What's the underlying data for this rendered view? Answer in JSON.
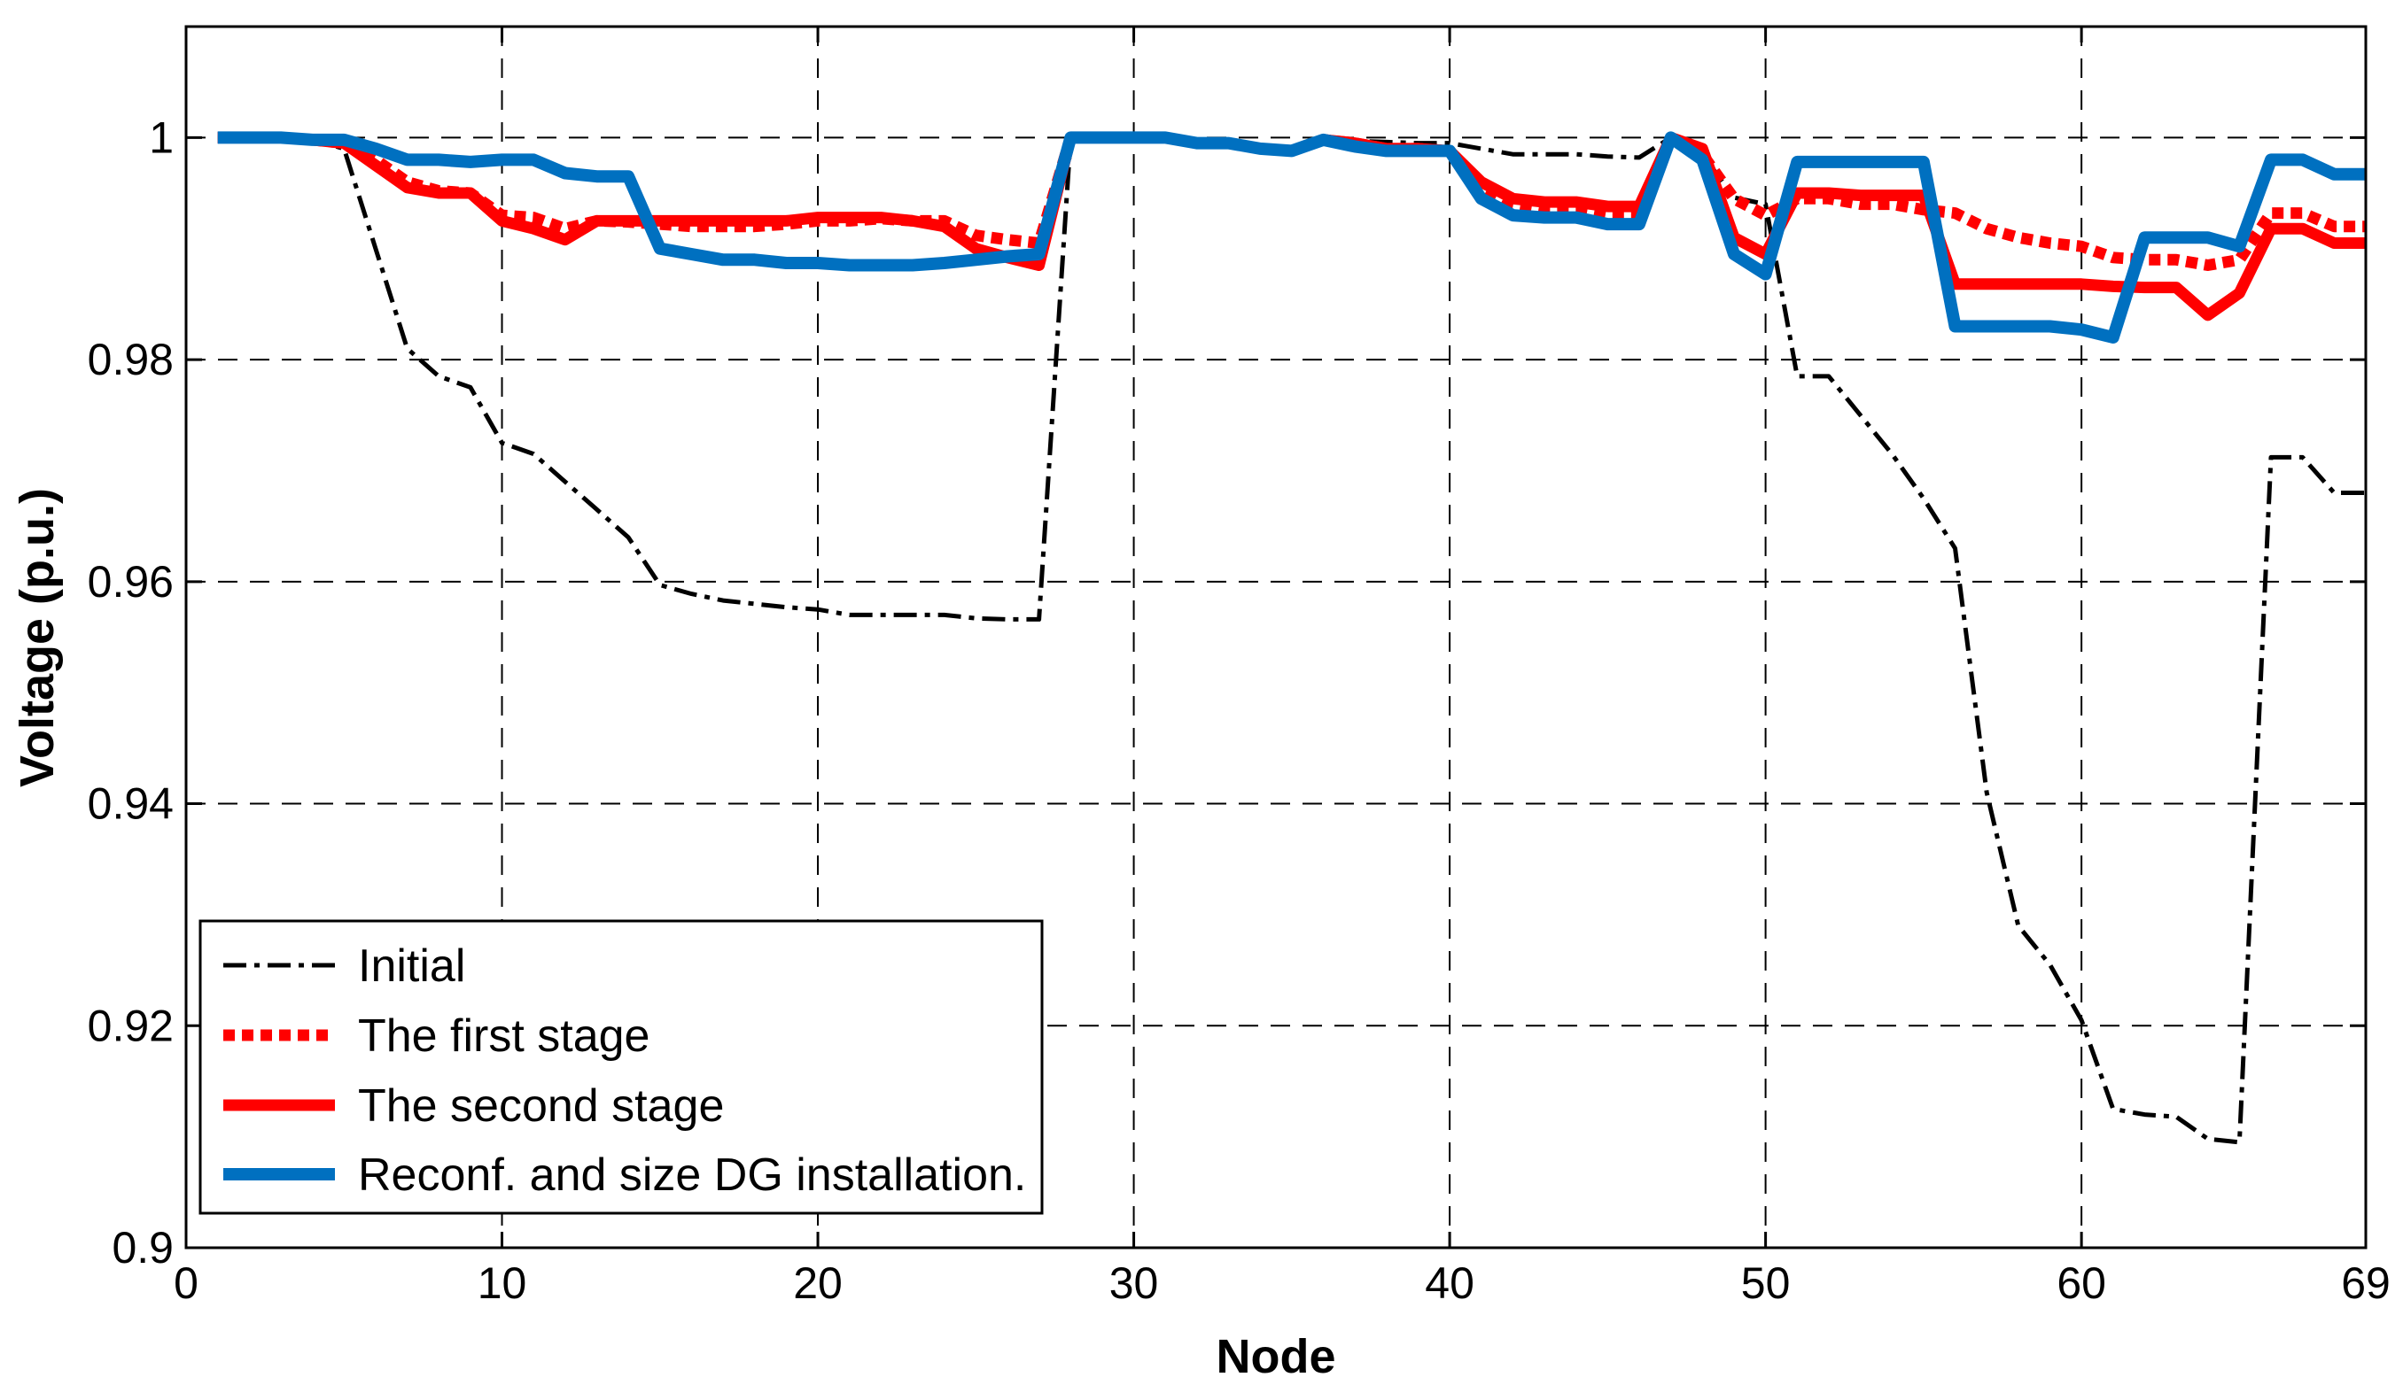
{
  "chart_data": {
    "type": "line",
    "title": "",
    "xlabel": "Node",
    "ylabel": "Voltage (p.u.)",
    "xlim": [
      0,
      69
    ],
    "ylim": [
      0.9,
      1.01
    ],
    "xticks": [
      0,
      10,
      20,
      30,
      40,
      50,
      60,
      69
    ],
    "xtick_labels": [
      "0",
      "10",
      "20",
      "30",
      "40",
      "50",
      "60",
      "69"
    ],
    "yticks": [
      0.9,
      0.92,
      0.94,
      0.96,
      0.98,
      1.0
    ],
    "ytick_labels": [
      "0.9",
      "0.92",
      "0.94",
      "0.96",
      "0.98",
      "1"
    ],
    "grid": true,
    "legend_position": "bottom-left",
    "x": [
      1,
      2,
      3,
      4,
      5,
      6,
      7,
      8,
      9,
      10,
      11,
      12,
      13,
      14,
      15,
      16,
      17,
      18,
      19,
      20,
      21,
      22,
      23,
      24,
      25,
      26,
      27,
      28,
      29,
      30,
      31,
      32,
      33,
      34,
      35,
      36,
      37,
      38,
      39,
      40,
      41,
      42,
      43,
      44,
      45,
      46,
      47,
      48,
      49,
      50,
      51,
      52,
      53,
      54,
      55,
      56,
      57,
      58,
      59,
      60,
      61,
      62,
      63,
      64,
      65,
      66,
      67,
      68,
      69
    ],
    "series": [
      {
        "name": "Initial",
        "color": "#000000",
        "style": "dashdot",
        "values": [
          1.0,
          1.0,
          1.0,
          0.9998,
          0.999,
          0.99,
          0.981,
          0.9785,
          0.9775,
          0.9725,
          0.9715,
          0.969,
          0.9665,
          0.964,
          0.9597,
          0.9589,
          0.9583,
          0.958,
          0.9577,
          0.9575,
          0.957,
          0.957,
          0.957,
          0.957,
          0.9567,
          0.9566,
          0.9566,
          1.0,
          1.0,
          1.0,
          1.0,
          0.9995,
          0.9995,
          0.999,
          0.9988,
          0.9998,
          0.9997,
          0.9996,
          0.9995,
          0.9995,
          0.999,
          0.9985,
          0.9985,
          0.9985,
          0.9983,
          0.9982,
          1.0,
          0.9985,
          0.9946,
          0.994,
          0.9785,
          0.9785,
          0.975,
          0.9715,
          0.9675,
          0.963,
          0.941,
          0.929,
          0.9255,
          0.9205,
          0.9125,
          0.912,
          0.9118,
          0.9098,
          0.9095,
          0.9712,
          0.9712,
          0.968,
          0.968
        ]
      },
      {
        "name": "The first stage",
        "color": "#ff0000",
        "style": "dotted",
        "values": [
          1.0,
          1.0,
          1.0,
          0.9998,
          0.9995,
          0.998,
          0.996,
          0.9952,
          0.995,
          0.993,
          0.9928,
          0.9918,
          0.9925,
          0.9924,
          0.9922,
          0.992,
          0.992,
          0.992,
          0.9922,
          0.9925,
          0.9925,
          0.9927,
          0.9925,
          0.9925,
          0.9912,
          0.9908,
          0.9905,
          1.0,
          1.0,
          1.0,
          1.0,
          0.9995,
          0.9995,
          0.999,
          0.9988,
          0.9998,
          0.9995,
          0.999,
          0.999,
          0.9988,
          0.9955,
          0.994,
          0.9935,
          0.9935,
          0.993,
          0.993,
          1.0,
          0.9985,
          0.9945,
          0.993,
          0.9945,
          0.9945,
          0.994,
          0.994,
          0.9935,
          0.9932,
          0.9918,
          0.991,
          0.9905,
          0.9902,
          0.9892,
          0.989,
          0.989,
          0.9885,
          0.989,
          0.9932,
          0.9932,
          0.992,
          0.992
        ]
      },
      {
        "name": "The second stage",
        "color": "#ff0000",
        "style": "solid",
        "values": [
          1.0,
          1.0,
          1.0,
          0.9998,
          0.9995,
          0.9975,
          0.9955,
          0.995,
          0.995,
          0.9925,
          0.9918,
          0.9908,
          0.9925,
          0.9925,
          0.9925,
          0.9925,
          0.9925,
          0.9925,
          0.9925,
          0.9928,
          0.9928,
          0.9928,
          0.9925,
          0.992,
          0.99,
          0.9892,
          0.9885,
          1.0,
          1.0,
          1.0,
          1.0,
          0.9995,
          0.9995,
          0.999,
          0.9988,
          0.9998,
          0.9995,
          0.999,
          0.999,
          0.9988,
          0.996,
          0.9945,
          0.9942,
          0.9942,
          0.9938,
          0.9938,
          1.0,
          0.999,
          0.991,
          0.9895,
          0.995,
          0.995,
          0.9948,
          0.9948,
          0.9948,
          0.9868,
          0.9868,
          0.9868,
          0.9868,
          0.9868,
          0.9866,
          0.9865,
          0.9865,
          0.984,
          0.986,
          0.9918,
          0.9918,
          0.9905,
          0.9905
        ]
      },
      {
        "name": "Reconf. and size DG installation.",
        "color": "#0070c0",
        "style": "solid",
        "values": [
          1.0,
          1.0,
          1.0,
          0.9998,
          0.9998,
          0.999,
          0.998,
          0.998,
          0.9978,
          0.998,
          0.998,
          0.9968,
          0.9965,
          0.9965,
          0.99,
          0.9895,
          0.989,
          0.989,
          0.9887,
          0.9887,
          0.9885,
          0.9885,
          0.9885,
          0.9887,
          0.989,
          0.9893,
          0.9895,
          1.0,
          1.0,
          1.0,
          1.0,
          0.9995,
          0.9995,
          0.999,
          0.9988,
          0.9998,
          0.9992,
          0.9988,
          0.9988,
          0.9988,
          0.9945,
          0.993,
          0.9928,
          0.9928,
          0.9922,
          0.9922,
          1.0,
          0.998,
          0.9895,
          0.9877,
          0.9978,
          0.9978,
          0.9978,
          0.9978,
          0.9978,
          0.983,
          0.983,
          0.983,
          0.983,
          0.9827,
          0.982,
          0.991,
          0.991,
          0.991,
          0.9902,
          0.998,
          0.998,
          0.9967,
          0.9967
        ]
      }
    ]
  }
}
